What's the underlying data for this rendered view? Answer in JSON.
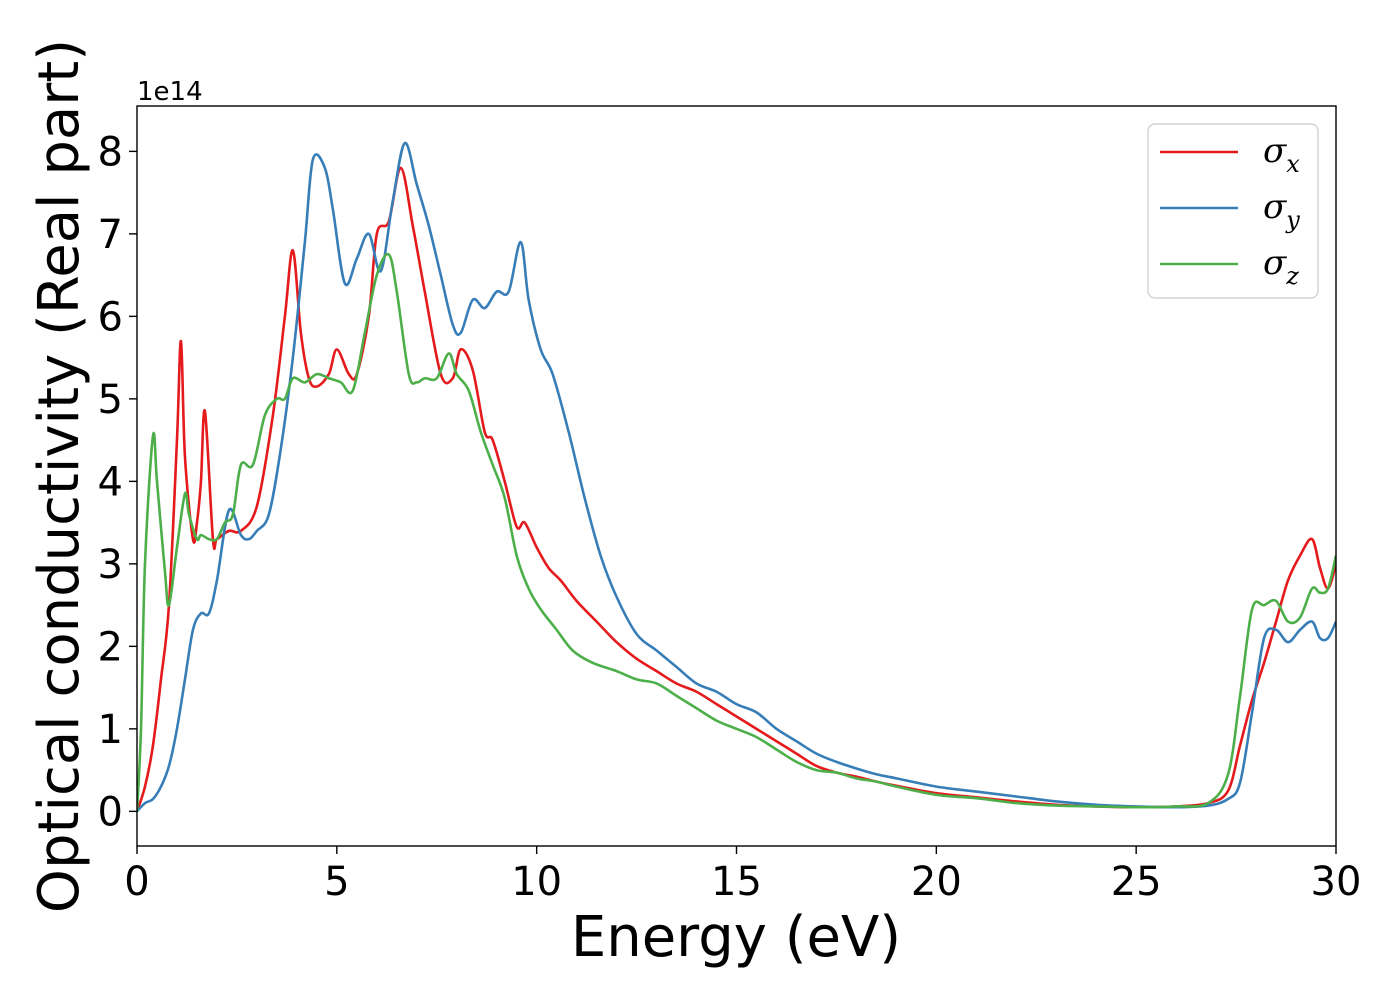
{
  "chart_data": {
    "type": "line",
    "title": "",
    "xlabel": "Energy (eV)",
    "ylabel": "Optical conductivity (Real part)",
    "y_offset_label": "1e14",
    "y_multiplier": 100000000000000.0,
    "xlim": [
      0,
      30
    ],
    "ylim": [
      -0.42,
      8.55
    ],
    "xticks": [
      0,
      5,
      10,
      15,
      20,
      25,
      30
    ],
    "yticks": [
      0,
      1,
      2,
      3,
      4,
      5,
      6,
      7,
      8
    ],
    "grid": false,
    "legend_position": "top-right",
    "series": [
      {
        "name": "σx",
        "legend_base": "σ",
        "legend_sub": "x",
        "color": "#e41a1c",
        "x": [
          0,
          0.2,
          0.4,
          0.6,
          0.8,
          1.0,
          1.1,
          1.2,
          1.4,
          1.5,
          1.6,
          1.7,
          1.9,
          2.0,
          2.3,
          2.6,
          3.0,
          3.4,
          3.7,
          3.9,
          4.1,
          4.3,
          4.5,
          4.8,
          5.0,
          5.3,
          5.5,
          5.8,
          6.0,
          6.3,
          6.6,
          6.9,
          7.2,
          7.6,
          7.9,
          8.1,
          8.4,
          8.7,
          8.9,
          9.2,
          9.5,
          9.7,
          10.0,
          10.3,
          10.6,
          11.0,
          11.5,
          12.0,
          12.5,
          13.0,
          13.5,
          14.0,
          14.5,
          15.0,
          15.5,
          16.0,
          16.5,
          17.0,
          17.5,
          18.0,
          18.5,
          19.0,
          20.0,
          21.0,
          22.0,
          23.0,
          24.0,
          25.0,
          26.0,
          26.8,
          27.3,
          27.6,
          27.9,
          28.2,
          28.5,
          28.8,
          29.1,
          29.4,
          29.6,
          29.8,
          30.0
        ],
        "y": [
          0,
          0.3,
          0.8,
          1.6,
          2.5,
          4.5,
          5.7,
          4.3,
          3.3,
          3.5,
          4.0,
          4.85,
          3.3,
          3.3,
          3.4,
          3.4,
          3.7,
          4.8,
          6.0,
          6.8,
          5.8,
          5.25,
          5.15,
          5.3,
          5.6,
          5.3,
          5.3,
          6.0,
          7.0,
          7.15,
          7.8,
          7.1,
          6.3,
          5.3,
          5.25,
          5.6,
          5.35,
          4.6,
          4.5,
          4.0,
          3.45,
          3.5,
          3.2,
          2.95,
          2.8,
          2.55,
          2.3,
          2.05,
          1.85,
          1.7,
          1.55,
          1.45,
          1.3,
          1.15,
          1.0,
          0.85,
          0.7,
          0.55,
          0.47,
          0.42,
          0.36,
          0.31,
          0.22,
          0.17,
          0.12,
          0.08,
          0.06,
          0.05,
          0.06,
          0.1,
          0.25,
          0.8,
          1.35,
          1.8,
          2.3,
          2.8,
          3.1,
          3.3,
          2.95,
          2.7,
          3.0
        ]
      },
      {
        "name": "σy",
        "legend_base": "σ",
        "legend_sub": "y",
        "color": "#377eb8",
        "x": [
          0,
          0.2,
          0.4,
          0.6,
          0.8,
          1.0,
          1.2,
          1.4,
          1.6,
          1.8,
          2.0,
          2.3,
          2.6,
          2.8,
          3.0,
          3.3,
          3.6,
          3.9,
          4.2,
          4.4,
          4.7,
          4.9,
          5.2,
          5.5,
          5.8,
          6.1,
          6.4,
          6.7,
          7.0,
          7.3,
          7.6,
          7.9,
          8.1,
          8.4,
          8.7,
          9.0,
          9.3,
          9.6,
          9.8,
          10.1,
          10.4,
          10.8,
          11.2,
          11.6,
          12.0,
          12.5,
          13.0,
          13.5,
          14.0,
          14.5,
          15.0,
          15.5,
          16.0,
          16.5,
          17.0,
          17.5,
          18.0,
          18.5,
          19.0,
          20.0,
          21.0,
          22.0,
          23.0,
          24.0,
          25.0,
          26.0,
          26.8,
          27.3,
          27.6,
          27.9,
          28.2,
          28.5,
          28.8,
          29.1,
          29.4,
          29.6,
          29.8,
          30.0
        ],
        "y": [
          0,
          0.1,
          0.15,
          0.3,
          0.55,
          1.0,
          1.6,
          2.2,
          2.4,
          2.4,
          2.8,
          3.65,
          3.35,
          3.3,
          3.4,
          3.6,
          4.4,
          5.5,
          6.9,
          7.9,
          7.8,
          7.3,
          6.4,
          6.7,
          7.0,
          6.55,
          7.4,
          8.1,
          7.6,
          7.1,
          6.5,
          5.9,
          5.8,
          6.2,
          6.1,
          6.3,
          6.3,
          6.9,
          6.2,
          5.6,
          5.3,
          4.6,
          3.8,
          3.1,
          2.6,
          2.15,
          1.95,
          1.75,
          1.55,
          1.45,
          1.3,
          1.2,
          1.0,
          0.85,
          0.7,
          0.6,
          0.52,
          0.45,
          0.4,
          0.3,
          0.24,
          0.18,
          0.12,
          0.08,
          0.06,
          0.05,
          0.07,
          0.15,
          0.35,
          1.2,
          2.1,
          2.2,
          2.05,
          2.2,
          2.3,
          2.1,
          2.1,
          2.3
        ]
      },
      {
        "name": "σz",
        "legend_base": "σ",
        "legend_sub": "z",
        "color": "#4daf4a",
        "x": [
          0,
          0.1,
          0.2,
          0.4,
          0.5,
          0.7,
          0.8,
          1.0,
          1.2,
          1.3,
          1.5,
          1.6,
          1.8,
          2.0,
          2.2,
          2.4,
          2.6,
          2.9,
          3.2,
          3.5,
          3.7,
          3.9,
          4.2,
          4.5,
          4.8,
          5.1,
          5.4,
          5.7,
          6.0,
          6.3,
          6.5,
          6.8,
          7.0,
          7.2,
          7.5,
          7.8,
          8.0,
          8.3,
          8.6,
          8.9,
          9.2,
          9.5,
          9.8,
          10.1,
          10.5,
          10.9,
          11.4,
          12.0,
          12.5,
          13.0,
          13.5,
          14.0,
          14.5,
          15.0,
          15.5,
          16.0,
          16.5,
          17.0,
          17.5,
          18.0,
          18.5,
          19.0,
          20.0,
          21.0,
          22.0,
          23.0,
          24.0,
          25.0,
          26.0,
          26.8,
          27.3,
          27.6,
          27.9,
          28.2,
          28.5,
          28.8,
          29.1,
          29.4,
          29.6,
          29.8,
          30.0
        ],
        "y": [
          0,
          1.0,
          3.0,
          4.55,
          4.0,
          2.9,
          2.5,
          3.2,
          3.85,
          3.6,
          3.3,
          3.35,
          3.3,
          3.3,
          3.5,
          3.6,
          4.2,
          4.2,
          4.8,
          5.0,
          5.0,
          5.25,
          5.2,
          5.3,
          5.25,
          5.2,
          5.1,
          5.8,
          6.5,
          6.75,
          6.3,
          5.3,
          5.2,
          5.25,
          5.25,
          5.55,
          5.3,
          5.1,
          4.6,
          4.2,
          3.8,
          3.1,
          2.7,
          2.45,
          2.2,
          1.95,
          1.8,
          1.7,
          1.6,
          1.55,
          1.4,
          1.25,
          1.1,
          1.0,
          0.9,
          0.75,
          0.6,
          0.5,
          0.47,
          0.4,
          0.36,
          0.3,
          0.2,
          0.16,
          0.1,
          0.07,
          0.06,
          0.05,
          0.06,
          0.1,
          0.45,
          1.4,
          2.45,
          2.5,
          2.55,
          2.3,
          2.35,
          2.7,
          2.65,
          2.7,
          3.1
        ]
      }
    ]
  }
}
